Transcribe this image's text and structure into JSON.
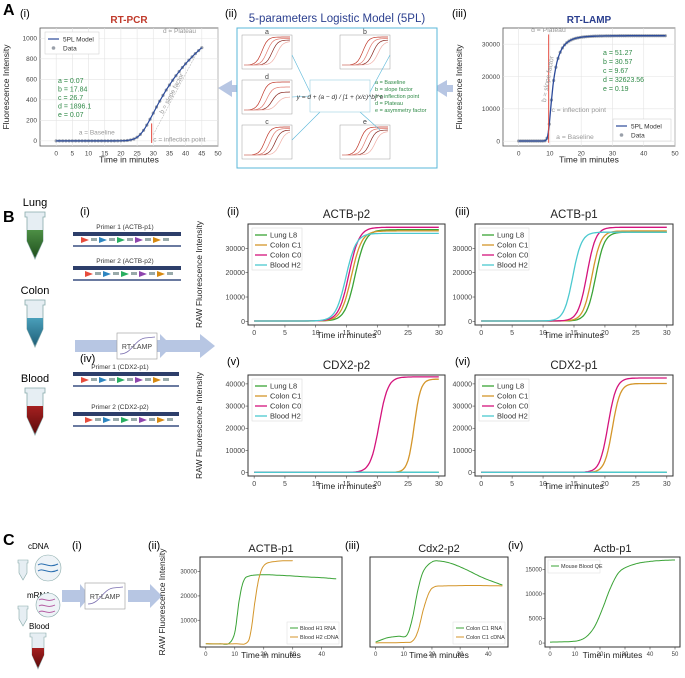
{
  "panel_letters": {
    "A": "A",
    "B": "B",
    "C": "C"
  },
  "roman": {
    "i": "(i)",
    "ii": "(ii)",
    "iii": "(iii)",
    "iv": "(iv)",
    "v": "(v)",
    "vi": "(vi)"
  },
  "colors": {
    "lung": "#3aa336",
    "colon_c1": "#d4962b",
    "colon_c0": "#d4147c",
    "blood": "#4cc9cf",
    "model": "#2b4a9a",
    "data": "#9aa0aa",
    "red_mark": "#e4453a",
    "arrow": "#b7c6e3",
    "formula_green": "#2f8a47",
    "box_border": "#58b7d9"
  },
  "panelA": {
    "model_title": "5-parameters Logistic Model (5PL)",
    "equation": "y = d + (a − d) / [1 + (x/c)^b]^e",
    "legend_params": [
      "a = Baseline",
      "b = slope factor",
      "c = inflection point",
      "d = Plateau",
      "e = asymmetry factor"
    ],
    "thumbs": [
      "a",
      "b",
      "d",
      "c",
      "e"
    ]
  },
  "panelB": {
    "tissues": [
      "Lung",
      "Colon",
      "Blood"
    ],
    "primers": [
      "Primer 1 (ACTB-p1)",
      "Primer 2 (ACTB-p2)",
      "Primer 1 (CDX2-p1)",
      "Primer 2 (CDX2-p2)"
    ],
    "rtlamp": "RT-LAMP"
  },
  "panelC": {
    "labels": [
      "cDNA",
      "mRNA",
      "Blood"
    ],
    "rtlamp": "RT-LAMP"
  },
  "chart_data": [
    {
      "id": "A-i",
      "type": "scatter+line",
      "title": "RT-PCR",
      "xlabel": "Time in minutes",
      "ylabel": "Fluorescence Intensity",
      "xlim": [
        -5,
        50
      ],
      "ylim": [
        -50,
        1100
      ],
      "xticks": [
        0,
        5,
        10,
        15,
        20,
        25,
        30,
        35,
        40,
        45,
        50
      ],
      "yticks": [
        0,
        200,
        400,
        600,
        800,
        1000
      ],
      "legend": [
        "5PL Model",
        "Data"
      ],
      "legend_position": "top-left",
      "params": {
        "a": 0.07,
        "b": 17.84,
        "c": 26.7,
        "d": 1896.1,
        "e": 0.07
      },
      "param_text": [
        "a = 0.07",
        "b = 17.84",
        "c = 26.7",
        "d = 1896.1",
        "e = 0.07"
      ],
      "data_x": [
        0,
        1,
        2,
        3,
        4,
        5,
        6,
        7,
        8,
        9,
        10,
        11,
        12,
        13,
        14,
        15,
        16,
        17,
        18,
        19,
        20,
        21,
        22,
        23,
        24,
        25,
        26,
        27,
        28,
        29,
        30,
        31,
        32,
        33,
        34,
        35,
        36,
        37,
        38,
        39,
        40,
        41,
        42,
        43,
        44,
        45
      ],
      "annotations": [
        "a = Baseline",
        "b = slope factor",
        "c = inflection point",
        "d = Plateau"
      ]
    },
    {
      "id": "A-iii",
      "type": "scatter+line",
      "title": "RT-LAMP",
      "xlabel": "Time in minutes",
      "ylabel": "Fluorescence Intensity",
      "xlim": [
        -5,
        50
      ],
      "ylim": [
        -1500,
        35000
      ],
      "xticks": [
        0,
        10,
        20,
        30,
        40,
        50
      ],
      "yticks": [
        0,
        10000,
        20000,
        30000
      ],
      "legend": [
        "5PL Model",
        "Data"
      ],
      "legend_position": "bottom-right",
      "params": {
        "a": 51.27,
        "b": 30.57,
        "c": 9.67,
        "d": 32623.56,
        "e": 0.19
      },
      "param_text": [
        "a = 51.27",
        "b = 30.57",
        "c = 9.67",
        "d = 32623.56",
        "e = 0.19"
      ],
      "annotations": [
        "a = Baseline",
        "b = slope factor",
        "c = inflection point",
        "d = Plateau"
      ]
    },
    {
      "id": "B-ii",
      "type": "line",
      "title": "ACTB-p2",
      "xlabel": "Time in minutes",
      "ylabel": "RAW Fluorescence Intensity",
      "xlim": [
        -1,
        31
      ],
      "ylim": [
        -1500,
        40000
      ],
      "xticks": [
        0,
        5,
        10,
        15,
        20,
        25,
        30
      ],
      "yticks": [
        0,
        10000,
        20000,
        30000
      ],
      "legend_position": "top-left",
      "series": [
        {
          "name": "Lung L8",
          "color": "lung",
          "plateau": 37500,
          "mid": 16.4,
          "k": 1.2
        },
        {
          "name": "Colon C1",
          "color": "colon_c1",
          "plateau": 37000,
          "mid": 15.8,
          "k": 1.2
        },
        {
          "name": "Colon C0",
          "color": "colon_c0",
          "plateau": 38500,
          "mid": 15.4,
          "k": 1.2
        },
        {
          "name": "Blood H2",
          "color": "blood",
          "plateau": 36000,
          "mid": 14.9,
          "k": 1.2
        }
      ]
    },
    {
      "id": "B-iii",
      "type": "line",
      "title": "ACTB-p1",
      "xlabel": "Time in minutes",
      "ylabel": "",
      "xlim": [
        -1,
        31
      ],
      "ylim": [
        -1500,
        40000
      ],
      "xticks": [
        0,
        5,
        10,
        15,
        20,
        25,
        30
      ],
      "yticks": [
        0,
        10000,
        20000,
        30000
      ],
      "legend_position": "top-left",
      "series": [
        {
          "name": "Lung L8",
          "color": "lung",
          "plateau": 36500,
          "mid": 18.5,
          "k": 1.4
        },
        {
          "name": "Colon C1",
          "color": "colon_c1",
          "plateau": 37000,
          "mid": 17.9,
          "k": 1.4
        },
        {
          "name": "Colon C0",
          "color": "colon_c0",
          "plateau": 38500,
          "mid": 17.1,
          "k": 1.4
        },
        {
          "name": "Blood H2",
          "color": "blood",
          "plateau": 36500,
          "mid": 14.8,
          "k": 1.4
        }
      ]
    },
    {
      "id": "B-v",
      "type": "line",
      "title": "CDX2-p2",
      "xlabel": "Time in minutes",
      "ylabel": "RAW Fluorescence Intensity",
      "xlim": [
        -1,
        31
      ],
      "ylim": [
        -1500,
        44000
      ],
      "xticks": [
        0,
        5,
        10,
        15,
        20,
        25,
        30
      ],
      "yticks": [
        0,
        10000,
        20000,
        30000,
        40000
      ],
      "legend_position": "top-left",
      "series": [
        {
          "name": "Lung L8",
          "color": "lung",
          "plateau": 500,
          "mid": 50,
          "k": 2
        },
        {
          "name": "Colon C1",
          "color": "colon_c1",
          "plateau": 42000,
          "mid": 26.0,
          "k": 1.9
        },
        {
          "name": "Colon C0",
          "color": "colon_c0",
          "plateau": 43000,
          "mid": 20.3,
          "k": 1.4
        },
        {
          "name": "Blood H2",
          "color": "blood",
          "plateau": 500,
          "mid": 50,
          "k": 2
        }
      ]
    },
    {
      "id": "B-vi",
      "type": "line",
      "title": "CDX2-p1",
      "xlabel": "Time in minutes",
      "ylabel": "",
      "xlim": [
        -1,
        31
      ],
      "ylim": [
        -1500,
        44000
      ],
      "xticks": [
        0,
        5,
        10,
        15,
        20,
        25,
        30
      ],
      "yticks": [
        0,
        10000,
        20000,
        30000,
        40000
      ],
      "legend_position": "top-left",
      "series": [
        {
          "name": "Lung L8",
          "color": "lung",
          "plateau": 500,
          "mid": 50,
          "k": 2
        },
        {
          "name": "Colon C1",
          "color": "colon_c1",
          "plateau": 40000,
          "mid": 21.2,
          "k": 1.6
        },
        {
          "name": "Colon C0",
          "color": "colon_c0",
          "plateau": 42500,
          "mid": 20.5,
          "k": 1.5
        },
        {
          "name": "Blood H2",
          "color": "blood",
          "plateau": 500,
          "mid": 50,
          "k": 2
        }
      ]
    },
    {
      "id": "C-ii",
      "type": "line",
      "title": "ACTB-p1",
      "xlabel": "Time in minutes",
      "ylabel": "RAW Fluorescence Intensity",
      "xlim": [
        -2,
        47
      ],
      "ylim": [
        -1000,
        36000
      ],
      "xticks": [
        0,
        10,
        20,
        30,
        40
      ],
      "yticks": [
        10000,
        20000,
        30000
      ],
      "legend_position": "bottom-right",
      "series": [
        {
          "name": "Blood H1 RNA",
          "color": "lung",
          "points": [
            [
              0,
              300
            ],
            [
              5,
              300
            ],
            [
              8,
              500
            ],
            [
              10,
              5000
            ],
            [
              11.5,
              18000
            ],
            [
              13,
              26000
            ],
            [
              15,
              28200
            ],
            [
              20,
              28700
            ],
            [
              25,
              28500
            ],
            [
              30,
              28200
            ],
            [
              35,
              27800
            ],
            [
              40,
              27500
            ],
            [
              45,
              27000
            ]
          ]
        },
        {
          "name": "Blood H2 cDNA",
          "color": "colon_c1",
          "points": [
            [
              0,
              300
            ],
            [
              10,
              300
            ],
            [
              14,
              600
            ],
            [
              15.5,
              5000
            ],
            [
              17,
              18000
            ],
            [
              18.5,
              28000
            ],
            [
              20.5,
              33000
            ],
            [
              25,
              34300
            ],
            [
              30,
              34500
            ]
          ]
        }
      ]
    },
    {
      "id": "C-iii",
      "type": "line",
      "title": "Cdx2-p2",
      "xlabel": "Time in minutes",
      "ylabel": "",
      "xlim": [
        -2,
        47
      ],
      "ylim": [
        -400,
        10500
      ],
      "xticks": [
        0,
        10,
        20,
        30,
        40
      ],
      "yticks": [],
      "legend_position": "bottom-right",
      "series": [
        {
          "name": "Colon C1 RNA",
          "color": "lung",
          "points": [
            [
              0,
              200
            ],
            [
              4,
              700
            ],
            [
              8,
              900
            ],
            [
              11,
              1000
            ],
            [
              13,
              3000
            ],
            [
              15,
              6500
            ],
            [
              17,
              8800
            ],
            [
              20,
              9900
            ],
            [
              23,
              10000
            ],
            [
              27,
              9700
            ],
            [
              32,
              9000
            ],
            [
              38,
              8000
            ],
            [
              45,
              7100
            ]
          ]
        },
        {
          "name": "Colon C1 cDNA",
          "color": "colon_c1",
          "points": [
            [
              0,
              100
            ],
            [
              10,
              150
            ],
            [
              13,
              300
            ],
            [
              15,
              1500
            ],
            [
              17,
              4200
            ],
            [
              19,
              6200
            ],
            [
              21,
              6900
            ],
            [
              25,
              7000
            ],
            [
              35,
              7050
            ],
            [
              45,
              7000
            ]
          ]
        }
      ]
    },
    {
      "id": "C-iv",
      "type": "line",
      "title": "Actb-p1",
      "xlabel": "Time in minutes",
      "ylabel": "",
      "xlim": [
        -2,
        52
      ],
      "ylim": [
        -800,
        17500
      ],
      "xticks": [
        0,
        10,
        20,
        30,
        40,
        50
      ],
      "yticks": [
        0,
        5000,
        10000,
        15000
      ],
      "legend_position": "top-left",
      "series": [
        {
          "name": "Mouse Blood QE",
          "color": "lung",
          "points": [
            [
              0,
              200
            ],
            [
              8,
              300
            ],
            [
              12,
              600
            ],
            [
              15,
              1500
            ],
            [
              18,
              3500
            ],
            [
              21,
              7000
            ],
            [
              24,
              11000
            ],
            [
              27,
              14000
            ],
            [
              30,
              15300
            ],
            [
              35,
              16200
            ],
            [
              40,
              16600
            ],
            [
              45,
              16800
            ],
            [
              50,
              16900
            ]
          ]
        }
      ]
    }
  ]
}
